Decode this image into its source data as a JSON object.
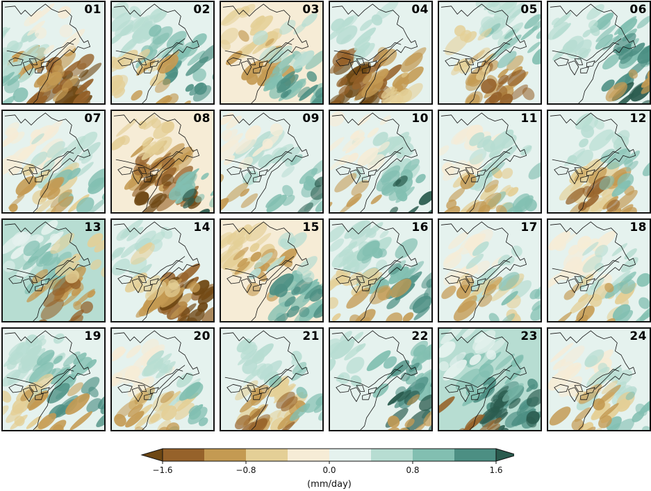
{
  "panels": [
    {
      "label": "01",
      "pattern": "southwest-brown"
    },
    {
      "label": "02",
      "pattern": "teal-spread"
    },
    {
      "label": "03",
      "pattern": "tan-north-teal-east"
    },
    {
      "label": "04",
      "pattern": "brown-south"
    },
    {
      "label": "05",
      "pattern": "mixed"
    },
    {
      "label": "06",
      "pattern": "teal-east"
    },
    {
      "label": "07",
      "pattern": "light-mixed"
    },
    {
      "label": "08",
      "pattern": "brown-center"
    },
    {
      "label": "09",
      "pattern": "light-teal"
    },
    {
      "label": "10",
      "pattern": "light-teal"
    },
    {
      "label": "11",
      "pattern": "light-mixed"
    },
    {
      "label": "12",
      "pattern": "tan-south"
    },
    {
      "label": "13",
      "pattern": "teal-brown-mix"
    },
    {
      "label": "14",
      "pattern": "brown-southeast"
    },
    {
      "label": "15",
      "pattern": "tan-north-teal-east"
    },
    {
      "label": "16",
      "pattern": "teal-spread"
    },
    {
      "label": "17",
      "pattern": "light-mixed"
    },
    {
      "label": "18",
      "pattern": "light-mixed"
    },
    {
      "label": "19",
      "pattern": "teal-spread"
    },
    {
      "label": "20",
      "pattern": "light-mixed"
    },
    {
      "label": "21",
      "pattern": "tan-south"
    },
    {
      "label": "22",
      "pattern": "teal-east"
    },
    {
      "label": "23",
      "pattern": "teal-strong"
    },
    {
      "label": "24",
      "pattern": "light-mixed"
    }
  ],
  "colorbar": {
    "colors": [
      "#6e4713",
      "#96622a",
      "#c49a52",
      "#e4cf96",
      "#f6ecd6",
      "#e5f2ee",
      "#b7ddd2",
      "#82bfb1",
      "#4c8f83",
      "#2a5b4e"
    ],
    "min": -2.0,
    "max": 2.0,
    "ticks": [
      {
        "value": -1.6,
        "label": "−1.6"
      },
      {
        "value": -0.8,
        "label": "−0.8"
      },
      {
        "value": 0.0,
        "label": "0.0"
      },
      {
        "value": 0.8,
        "label": "0.8"
      },
      {
        "value": 1.6,
        "label": "1.6"
      }
    ],
    "unit": "(mm/day)",
    "extend": "both"
  }
}
